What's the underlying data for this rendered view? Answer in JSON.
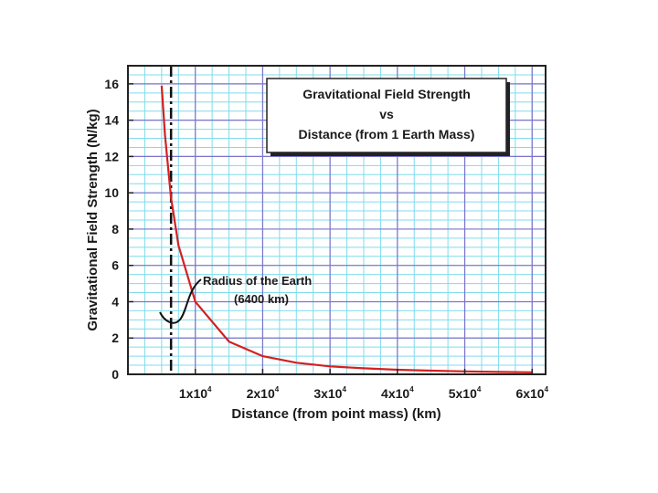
{
  "chart_data": {
    "type": "line",
    "title": [
      "Gravitational Field Strength",
      "vs",
      "Distance (from 1 Earth Mass)"
    ],
    "xlabel": "Distance (from point mass) (km)",
    "ylabel": "Gravitational Field Strength (N/kg)",
    "xlim": [
      0,
      62000
    ],
    "ylim": [
      0,
      17
    ],
    "yticks": [
      0,
      2,
      4,
      6,
      8,
      10,
      12,
      14,
      16
    ],
    "xticks": [
      {
        "value": 10000,
        "mantissa": "1x10",
        "exponent": "4"
      },
      {
        "value": 20000,
        "mantissa": "2x10",
        "exponent": "4"
      },
      {
        "value": 30000,
        "mantissa": "3x10",
        "exponent": "4"
      },
      {
        "value": 40000,
        "mantissa": "4x10",
        "exponent": "4"
      },
      {
        "value": 50000,
        "mantissa": "5x10",
        "exponent": "4"
      },
      {
        "value": 60000,
        "mantissa": "6x10",
        "exponent": "4"
      }
    ],
    "grid": true,
    "series": [
      {
        "color": "#d42020",
        "x": [
          5000,
          5500,
          6400,
          7500,
          10000,
          15000,
          20000,
          25000,
          30000,
          35000,
          40000,
          45000,
          50000,
          55000,
          60000
        ],
        "y": [
          15.9,
          13.2,
          9.7,
          7.1,
          4.0,
          1.8,
          1.0,
          0.64,
          0.44,
          0.33,
          0.25,
          0.2,
          0.16,
          0.13,
          0.11
        ]
      }
    ],
    "annotation": {
      "label": [
        "Radius of the Earth",
        "(6400 km)"
      ],
      "x": 6400
    }
  }
}
